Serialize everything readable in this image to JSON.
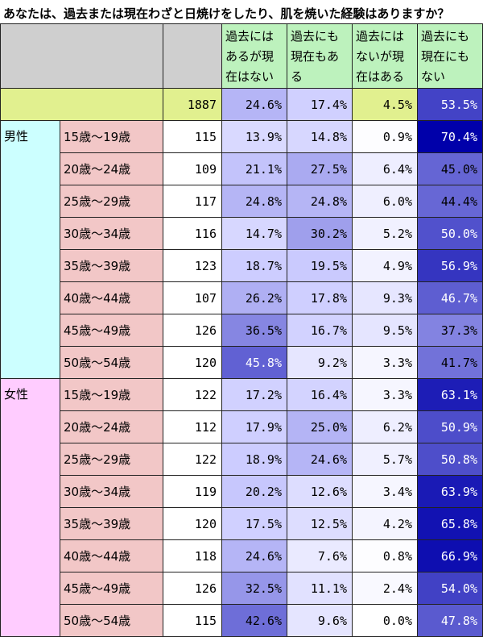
{
  "title": "あなたは、過去または現在わざと日焼けをしたり、肌を焼いた経験はありますか？",
  "header": {
    "cols": [
      "過去にはあるが現在はない",
      "過去にも現在もある",
      "過去にはないが現在はある",
      "過去にも現在にもない"
    ]
  },
  "colors": {
    "header_bg": "#bdf2bd",
    "corner_bg": "#cfcfcf",
    "total_row_bg": "#e1f08f",
    "age_bg": "#f2c7c7",
    "male_bg": "#ccffff",
    "female_bg": "#ffccff",
    "scale_low": "#ffffff",
    "scale_mid": "#ccccff",
    "scale_high": "#0000aa"
  },
  "chart_data": {
    "type": "table",
    "title": "あなたは、過去または現在わざと日焼けをしたり、肌を焼いた経験はありますか？",
    "columns": [
      "過去にはあるが現在はない",
      "過去にも現在もある",
      "過去にはないが現在はある",
      "過去にも現在にもない"
    ],
    "total": {
      "n": "1887",
      "values": [
        "24.6%",
        "17.4%",
        "4.5%",
        "53.5%"
      ]
    },
    "groups": [
      {
        "name": "男性",
        "rows": [
          {
            "age": "15歳～19歳",
            "n": "115",
            "values": [
              "13.9%",
              "14.8%",
              "0.9%",
              "70.4%"
            ]
          },
          {
            "age": "20歳～24歳",
            "n": "109",
            "values": [
              "21.1%",
              "27.5%",
              "6.4%",
              "45.0%"
            ]
          },
          {
            "age": "25歳～29歳",
            "n": "117",
            "values": [
              "24.8%",
              "24.8%",
              "6.0%",
              "44.4%"
            ]
          },
          {
            "age": "30歳～34歳",
            "n": "116",
            "values": [
              "14.7%",
              "30.2%",
              "5.2%",
              "50.0%"
            ]
          },
          {
            "age": "35歳～39歳",
            "n": "123",
            "values": [
              "18.7%",
              "19.5%",
              "4.9%",
              "56.9%"
            ]
          },
          {
            "age": "40歳～44歳",
            "n": "107",
            "values": [
              "26.2%",
              "17.8%",
              "9.3%",
              "46.7%"
            ]
          },
          {
            "age": "45歳～49歳",
            "n": "126",
            "values": [
              "36.5%",
              "16.7%",
              "9.5%",
              "37.3%"
            ]
          },
          {
            "age": "50歳～54歳",
            "n": "120",
            "values": [
              "45.8%",
              "9.2%",
              "3.3%",
              "41.7%"
            ]
          }
        ]
      },
      {
        "name": "女性",
        "rows": [
          {
            "age": "15歳～19歳",
            "n": "122",
            "values": [
              "17.2%",
              "16.4%",
              "3.3%",
              "63.1%"
            ]
          },
          {
            "age": "20歳～24歳",
            "n": "112",
            "values": [
              "17.9%",
              "25.0%",
              "6.2%",
              "50.9%"
            ]
          },
          {
            "age": "25歳～29歳",
            "n": "122",
            "values": [
              "18.9%",
              "24.6%",
              "5.7%",
              "50.8%"
            ]
          },
          {
            "age": "30歳～34歳",
            "n": "119",
            "values": [
              "20.2%",
              "12.6%",
              "3.4%",
              "63.9%"
            ]
          },
          {
            "age": "35歳～39歳",
            "n": "120",
            "values": [
              "17.5%",
              "12.5%",
              "4.2%",
              "65.8%"
            ]
          },
          {
            "age": "40歳～44歳",
            "n": "118",
            "values": [
              "24.6%",
              "7.6%",
              "0.8%",
              "66.9%"
            ]
          },
          {
            "age": "45歳～49歳",
            "n": "126",
            "values": [
              "32.5%",
              "11.1%",
              "2.4%",
              "54.0%"
            ]
          },
          {
            "age": "50歳～54歳",
            "n": "115",
            "values": [
              "42.6%",
              "9.6%",
              "0.0%",
              "47.8%"
            ]
          }
        ]
      }
    ]
  }
}
